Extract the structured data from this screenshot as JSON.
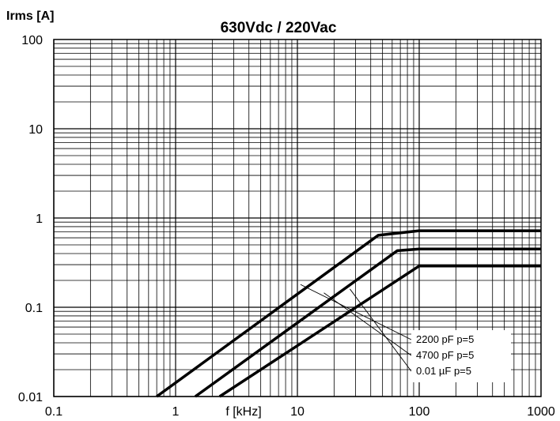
{
  "chart_data": {
    "type": "line",
    "title": "630Vdc / 220Vac",
    "xlabel": "f [kHz]",
    "ylabel": "Irms [A]",
    "x_scale": "log",
    "y_scale": "log",
    "xlim": [
      0.1,
      1000
    ],
    "ylim": [
      0.01,
      100
    ],
    "x_ticks": [
      "0.1",
      "1",
      "10",
      "100",
      "1000"
    ],
    "y_ticks": [
      "0.01",
      "0.1",
      "1",
      "10",
      "100"
    ],
    "grid": true,
    "series": [
      {
        "name": "2200 pF  p=5",
        "x": [
          0.7,
          46,
          100,
          1000
        ],
        "y": [
          0.01,
          0.64,
          0.72,
          0.72
        ]
      },
      {
        "name": "4700 pF  p=5",
        "x": [
          1.45,
          66,
          100,
          1000
        ],
        "y": [
          0.01,
          0.43,
          0.45,
          0.45
        ]
      },
      {
        "name": "0.01 µF  p=5",
        "x": [
          2.3,
          100,
          1000
        ],
        "y": [
          0.01,
          0.29,
          0.29
        ]
      }
    ],
    "colors": {
      "line": "#000000",
      "grid": "#000000",
      "background": "#ffffff"
    }
  }
}
